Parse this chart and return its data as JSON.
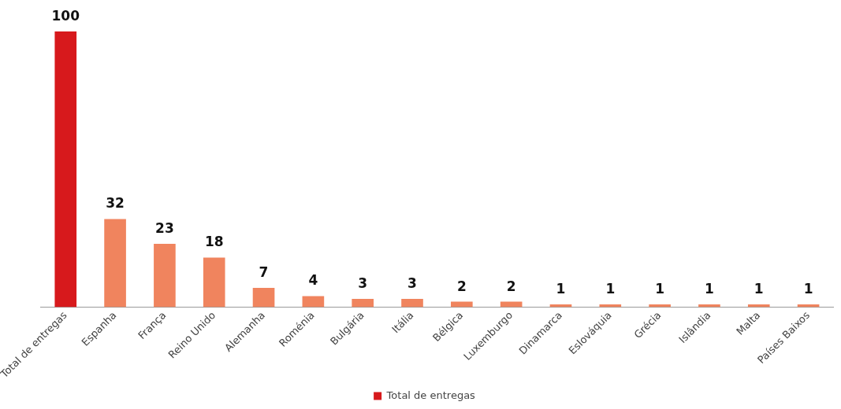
{
  "chart_data": {
    "type": "bar",
    "categories": [
      "Total de entregas",
      "Espanha",
      "França",
      "Reino Unido",
      "Alemanha",
      "Roménia",
      "Bulgária",
      "Itália",
      "Bélgica",
      "Luxemburgo",
      "Dinamarca",
      "Eslováquia",
      "Grécia",
      "Islândia",
      "Malta",
      "Países Baixos"
    ],
    "series": [
      {
        "name": "Total de entregas",
        "color": "#d7191c",
        "values": [
          100,
          null,
          null,
          null,
          null,
          null,
          null,
          null,
          null,
          null,
          null,
          null,
          null,
          null,
          null,
          null
        ]
      },
      {
        "color": "#f0845e",
        "values": [
          null,
          32,
          23,
          18,
          7,
          4,
          3,
          3,
          2,
          2,
          1,
          1,
          1,
          1,
          1,
          1
        ]
      }
    ],
    "data_labels": true,
    "legend": "bottom",
    "grid": false,
    "tick_labels": "x"
  }
}
